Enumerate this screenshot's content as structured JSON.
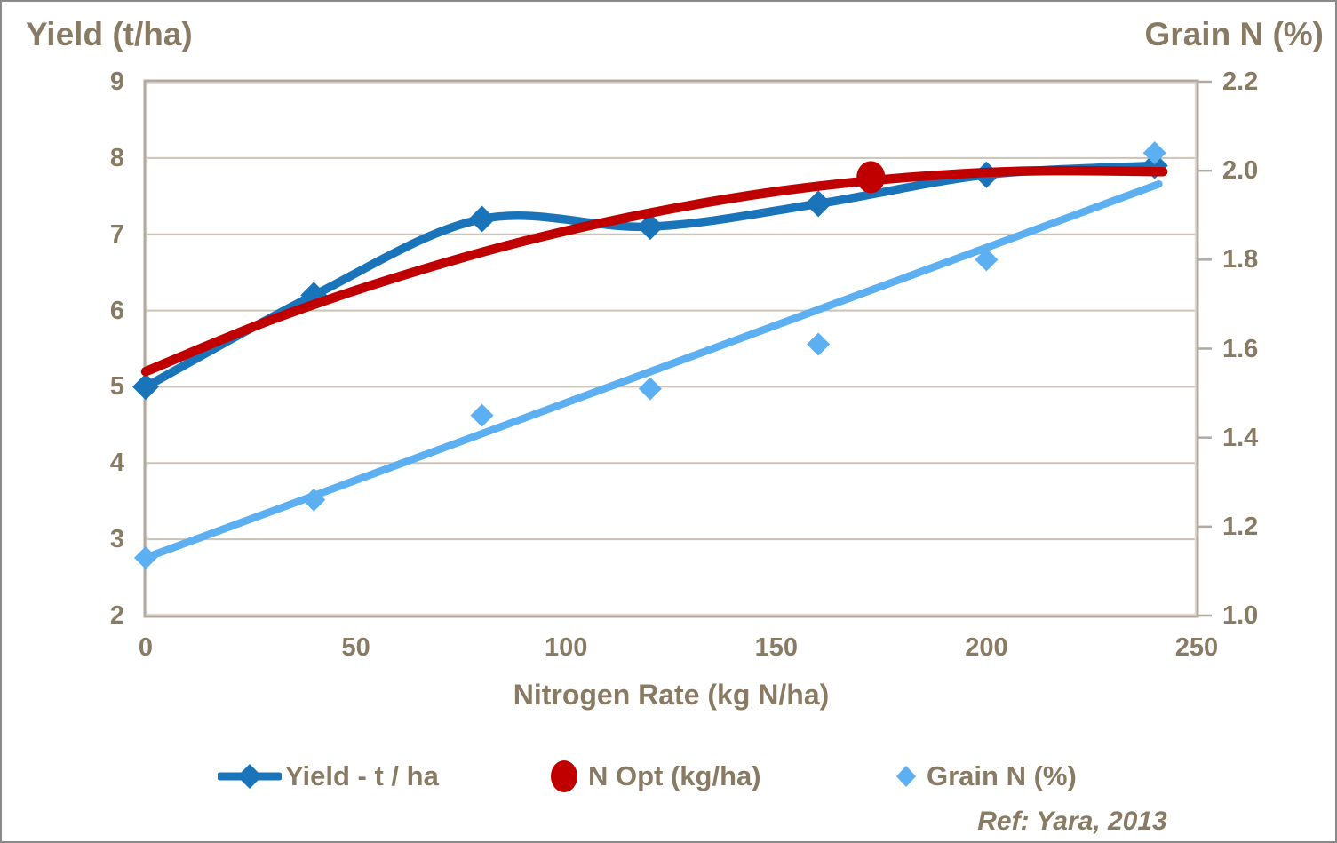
{
  "titles": {
    "left_axis": "Yield (t/ha)",
    "right_axis": "Grain N (%)"
  },
  "x_axis": {
    "label": "Nitrogen Rate (kg N/ha)",
    "ticks": [
      0,
      50,
      100,
      150,
      200,
      250
    ],
    "range": [
      0,
      250
    ]
  },
  "y_left_axis": {
    "ticks": [
      9,
      8,
      7,
      6,
      5,
      4,
      3,
      2
    ],
    "range": [
      2,
      9
    ]
  },
  "y_right_axis": {
    "ticks": [
      "2.2",
      "2.0",
      "1.8",
      "1.6",
      "1.4",
      "1.2",
      "1.0"
    ],
    "range": [
      1.0,
      2.2
    ]
  },
  "legend": [
    {
      "label": "Yield - t / ha",
      "marker": "line-diamond",
      "color": "#1a74ba"
    },
    {
      "label": "N Opt (kg/ha)",
      "marker": "circle",
      "color": "#c00000"
    },
    {
      "label": "Grain N (%)",
      "marker": "diamond",
      "color": "#5cb0f2"
    }
  ],
  "ref_note": "Ref: Yara, 2013",
  "colors": {
    "text": "#897a64",
    "gridline": "#ccc3b6",
    "frame": "#b3a99e",
    "frame_inner": "#e0dad1",
    "yield_blue": "#1a74ba",
    "n_opt_red": "#c00000",
    "grain_light_blue": "#5cb0f2",
    "background": "#ffffff"
  },
  "chart_data": {
    "type": "line",
    "title": "",
    "xlabel": "Nitrogen Rate (kg N/ha)",
    "ylabel_left": "Yield (t/ha)",
    "ylabel_right": "Grain N (%)",
    "x_range": [
      0,
      250
    ],
    "y_left_range": [
      2,
      9
    ],
    "y_right_range": [
      1.0,
      2.2
    ],
    "grid": "horizontal-only",
    "legend_position": "bottom",
    "x": [
      0,
      40,
      80,
      120,
      160,
      200,
      240
    ],
    "series": [
      {
        "name": "Yield - t / ha",
        "axis": "left",
        "type": "smooth-line-diamond",
        "color": "#1a74ba",
        "values": [
          5.0,
          6.2,
          7.2,
          7.1,
          7.4,
          7.78,
          7.9
        ]
      },
      {
        "name": "N Opt (kg/ha)",
        "axis": "left",
        "type": "fitted-curve-with-point",
        "color": "#c00000",
        "curve_points": [
          [
            0,
            5.2
          ],
          [
            30,
            5.88
          ],
          [
            60,
            6.44
          ],
          [
            90,
            6.91
          ],
          [
            120,
            7.28
          ],
          [
            150,
            7.56
          ],
          [
            180,
            7.74
          ],
          [
            210,
            7.83
          ],
          [
            242,
            7.82
          ]
        ],
        "optimum_point": {
          "x": 172.5,
          "y": 7.75
        }
      },
      {
        "name": "Grain N (%)",
        "axis": "right",
        "type": "scatter-diamond-with-trend",
        "color": "#5cb0f2",
        "values": [
          1.13,
          1.26,
          1.45,
          1.51,
          1.61,
          1.8,
          2.04
        ],
        "trend_line": [
          [
            0,
            1.13
          ],
          [
            241,
            1.97
          ]
        ]
      }
    ]
  }
}
